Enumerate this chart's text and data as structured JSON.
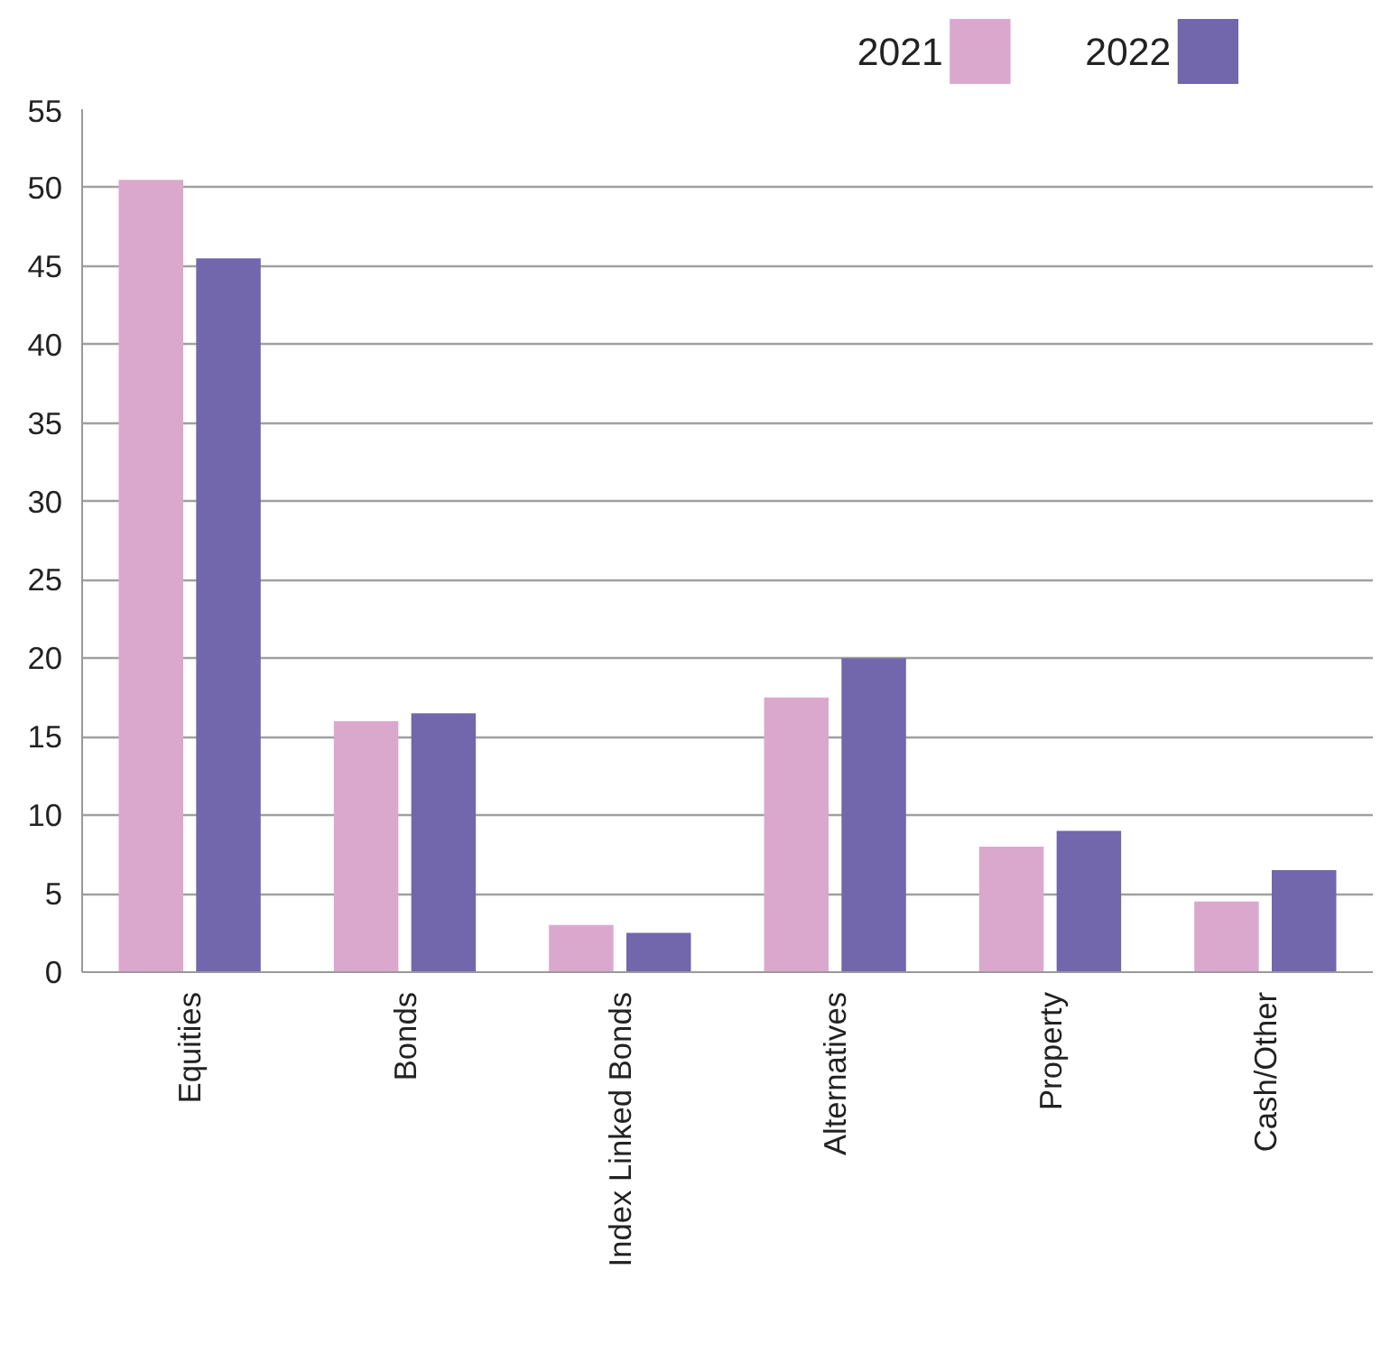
{
  "chart_data": {
    "type": "bar",
    "categories": [
      "Equities",
      "Bonds",
      "Index Linked Bonds",
      "Alternatives",
      "Property",
      "Cash/Other"
    ],
    "series": [
      {
        "name": "2021",
        "color": "#dba8cd",
        "values": [
          50.5,
          16,
          3,
          17.5,
          8,
          4.5
        ]
      },
      {
        "name": "2022",
        "color": "#7266ac",
        "values": [
          45.5,
          16.5,
          2.5,
          20,
          9,
          6.5
        ]
      }
    ],
    "ylim": [
      0,
      55
    ],
    "yticks": [
      0,
      5,
      10,
      15,
      20,
      25,
      30,
      35,
      40,
      45,
      50,
      55
    ],
    "grid": "y",
    "legend": "top right"
  }
}
